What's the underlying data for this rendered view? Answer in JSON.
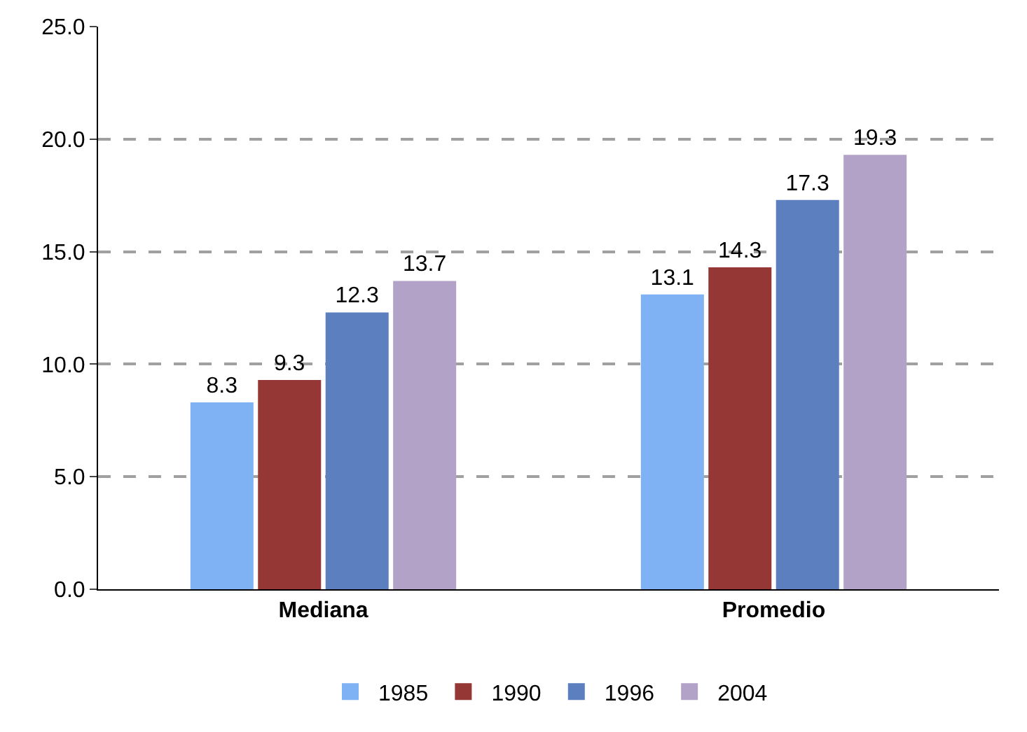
{
  "chart_data": {
    "type": "bar",
    "categories": [
      "Mediana",
      "Promedio"
    ],
    "series": [
      {
        "name": "1985",
        "color": "#7fb2f5",
        "values": [
          8.3,
          13.1
        ]
      },
      {
        "name": "1990",
        "color": "#953735",
        "values": [
          9.3,
          14.3
        ]
      },
      {
        "name": "1996",
        "color": "#5b7fbf",
        "values": [
          12.3,
          17.3
        ]
      },
      {
        "name": "2004",
        "color": "#b3a2c7",
        "values": [
          13.7,
          19.3
        ]
      }
    ],
    "ylim": [
      0,
      25
    ],
    "yticks": [
      {
        "value": 0,
        "label": "0.0"
      },
      {
        "value": 5,
        "label": "5.0"
      },
      {
        "value": 10,
        "label": "10.0"
      },
      {
        "value": 15,
        "label": "15.0"
      },
      {
        "value": 20,
        "label": "20.0"
      },
      {
        "value": 25,
        "label": "25.0"
      }
    ],
    "grid": "y",
    "legend": "bottom",
    "data_labels": true
  }
}
